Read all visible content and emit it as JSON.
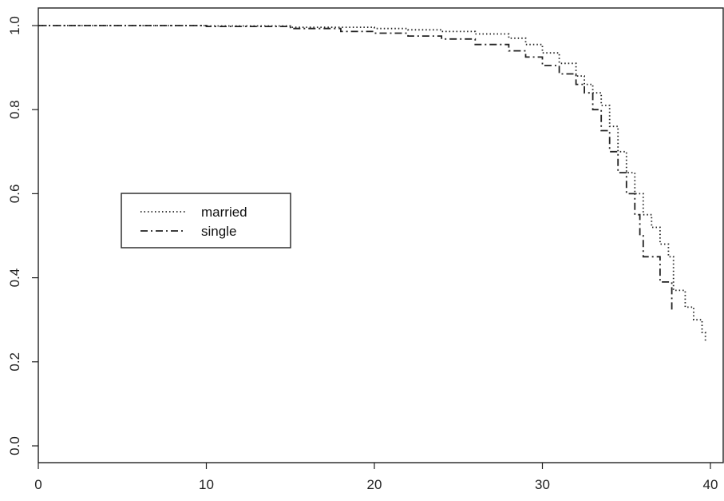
{
  "chart_data": {
    "type": "line",
    "title": "",
    "xlabel": "",
    "ylabel": "",
    "xlim": [
      0,
      40
    ],
    "ylim": [
      0,
      1.0
    ],
    "x_ticks": [
      "0",
      "10",
      "20",
      "30",
      "40"
    ],
    "y_ticks": [
      "0.0",
      "0.2",
      "0.4",
      "0.6",
      "0.8",
      "1.0"
    ],
    "grid": false,
    "legend_position": "center-left",
    "series": [
      {
        "name": "married",
        "style": "dotted",
        "color": "#222222",
        "points": [
          [
            0,
            1.0
          ],
          [
            5,
            1.0
          ],
          [
            10,
            0.999
          ],
          [
            15,
            0.996
          ],
          [
            20,
            0.993
          ],
          [
            22,
            0.99
          ],
          [
            24,
            0.986
          ],
          [
            26,
            0.98
          ],
          [
            28,
            0.97
          ],
          [
            29,
            0.955
          ],
          [
            30,
            0.935
          ],
          [
            31,
            0.91
          ],
          [
            32,
            0.88
          ],
          [
            32.5,
            0.86
          ],
          [
            33,
            0.84
          ],
          [
            33.5,
            0.81
          ],
          [
            34,
            0.76
          ],
          [
            34.5,
            0.7
          ],
          [
            35,
            0.65
          ],
          [
            35.5,
            0.6
          ],
          [
            36,
            0.55
          ],
          [
            36.5,
            0.52
          ],
          [
            37,
            0.48
          ],
          [
            37.5,
            0.45
          ],
          [
            37.8,
            0.37
          ],
          [
            38.5,
            0.33
          ],
          [
            39,
            0.3
          ],
          [
            39.5,
            0.27
          ],
          [
            39.7,
            0.25
          ]
        ]
      },
      {
        "name": "single",
        "style": "dash-dot",
        "color": "#222222",
        "points": [
          [
            0,
            1.0
          ],
          [
            5,
            1.0
          ],
          [
            10,
            0.998
          ],
          [
            15,
            0.993
          ],
          [
            18,
            0.986
          ],
          [
            20,
            0.982
          ],
          [
            22,
            0.975
          ],
          [
            24,
            0.968
          ],
          [
            26,
            0.955
          ],
          [
            28,
            0.94
          ],
          [
            29,
            0.925
          ],
          [
            30,
            0.905
          ],
          [
            31,
            0.885
          ],
          [
            32,
            0.86
          ],
          [
            32.5,
            0.84
          ],
          [
            33,
            0.8
          ],
          [
            33.5,
            0.75
          ],
          [
            34,
            0.7
          ],
          [
            34.5,
            0.65
          ],
          [
            35,
            0.6
          ],
          [
            35.5,
            0.55
          ],
          [
            35.8,
            0.5
          ],
          [
            36,
            0.45
          ],
          [
            36.5,
            0.45
          ],
          [
            37,
            0.39
          ],
          [
            37.5,
            0.39
          ],
          [
            37.7,
            0.32
          ]
        ]
      }
    ]
  }
}
